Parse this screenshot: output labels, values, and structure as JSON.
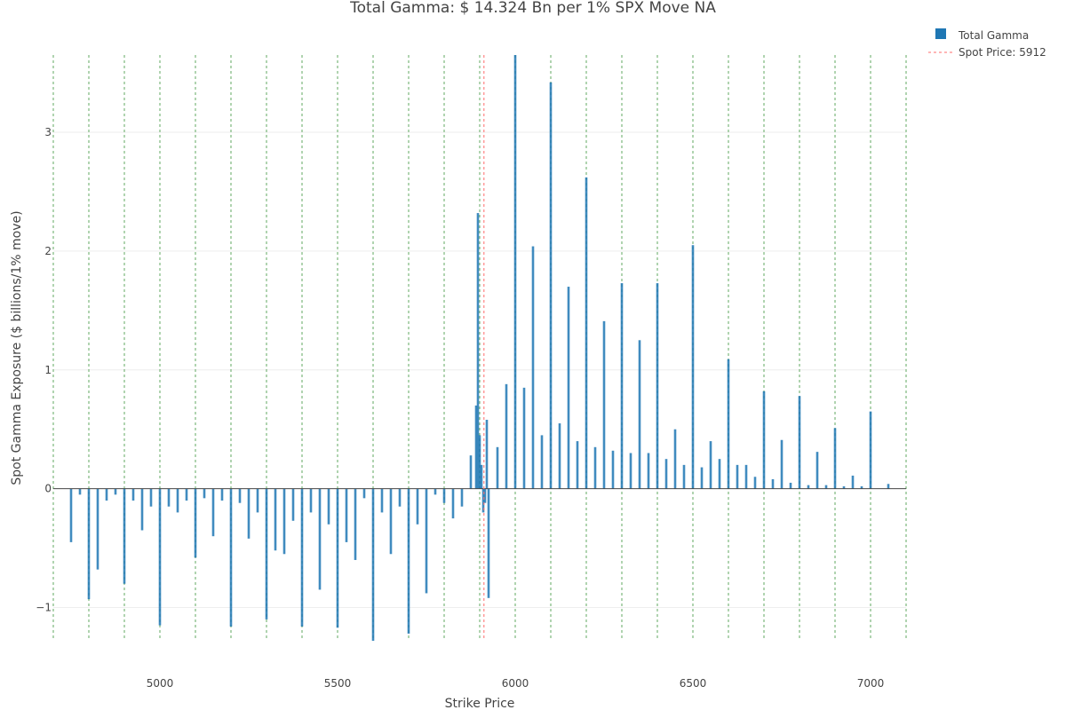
{
  "chart_data": {
    "type": "bar",
    "title": "Total Gamma: $ 14.324  Bn per 1% SPX Move  NA",
    "xlabel": "Strike Price",
    "ylabel": "Spot Gamma Exposure ($ billions/1% move)",
    "xlim": [
      4700,
      7100
    ],
    "ylim": [
      -1.28,
      3.65
    ],
    "x_ticks": [
      5000,
      5500,
      6000,
      6500,
      7000
    ],
    "y_ticks": [
      -1,
      0,
      1,
      2,
      3
    ],
    "y_tick_labels": [
      "−1",
      "0",
      "1",
      "2",
      "3"
    ],
    "grid": true,
    "legend_position": "top-right",
    "bar_color": "#1f77b4",
    "spot_color": "#ff6b6b",
    "ref_line_color": "#2e8b2e",
    "spot_price": 5912,
    "reference_lines": [
      4700,
      4800,
      4900,
      5000,
      5100,
      5200,
      5300,
      5400,
      5500,
      5600,
      5700,
      5800,
      5900,
      6000,
      6100,
      6200,
      6300,
      6400,
      6500,
      6600,
      6700,
      6800,
      6900,
      7000,
      7100
    ],
    "series": [
      {
        "name": "Total Gamma",
        "x": [
          4750,
          4775,
          4800,
          4825,
          4850,
          4875,
          4900,
          4925,
          4950,
          4975,
          5000,
          5025,
          5050,
          5075,
          5100,
          5125,
          5150,
          5175,
          5200,
          5225,
          5250,
          5275,
          5300,
          5325,
          5350,
          5375,
          5400,
          5425,
          5450,
          5475,
          5500,
          5525,
          5550,
          5575,
          5600,
          5625,
          5650,
          5675,
          5700,
          5725,
          5750,
          5775,
          5800,
          5825,
          5850,
          5875,
          5890,
          5895,
          5900,
          5905,
          5910,
          5915,
          5920,
          5925,
          5950,
          5975,
          6000,
          6025,
          6050,
          6075,
          6100,
          6125,
          6150,
          6175,
          6200,
          6225,
          6250,
          6275,
          6300,
          6325,
          6350,
          6375,
          6400,
          6425,
          6450,
          6475,
          6500,
          6525,
          6550,
          6575,
          6600,
          6625,
          6650,
          6675,
          6700,
          6725,
          6750,
          6775,
          6800,
          6825,
          6850,
          6875,
          6900,
          6925,
          6950,
          6975,
          7000,
          7050
        ],
        "values": [
          -0.45,
          -0.05,
          -0.93,
          -0.68,
          -0.1,
          -0.05,
          -0.8,
          -0.1,
          -0.35,
          -0.15,
          -1.15,
          -0.15,
          -0.2,
          -0.1,
          -0.58,
          -0.08,
          -0.4,
          -0.1,
          -1.16,
          -0.12,
          -0.42,
          -0.2,
          -1.1,
          -0.52,
          -0.55,
          -0.27,
          -1.16,
          -0.2,
          -0.85,
          -0.3,
          -1.17,
          -0.45,
          -0.6,
          -0.08,
          -1.28,
          -0.2,
          -0.55,
          -0.15,
          -1.22,
          -0.3,
          -0.88,
          -0.05,
          -0.12,
          -0.25,
          -0.15,
          0.28,
          0.7,
          2.32,
          0.45,
          0.2,
          -0.2,
          -0.12,
          0.58,
          -0.92,
          0.35,
          0.88,
          3.65,
          0.85,
          2.04,
          0.45,
          3.42,
          0.55,
          1.7,
          0.4,
          2.62,
          0.35,
          1.41,
          0.32,
          1.73,
          0.3,
          1.25,
          0.3,
          1.73,
          0.25,
          0.5,
          0.2,
          2.05,
          0.18,
          0.4,
          0.25,
          1.09,
          0.2,
          0.2,
          0.1,
          0.82,
          0.08,
          0.41,
          0.05,
          0.78,
          0.03,
          0.31,
          0.03,
          0.51,
          0.02,
          0.11,
          0.02,
          0.65,
          0.04
        ]
      }
    ],
    "legend": {
      "bar_label": "Total Gamma",
      "spot_label": "Spot Price:  5912"
    }
  }
}
